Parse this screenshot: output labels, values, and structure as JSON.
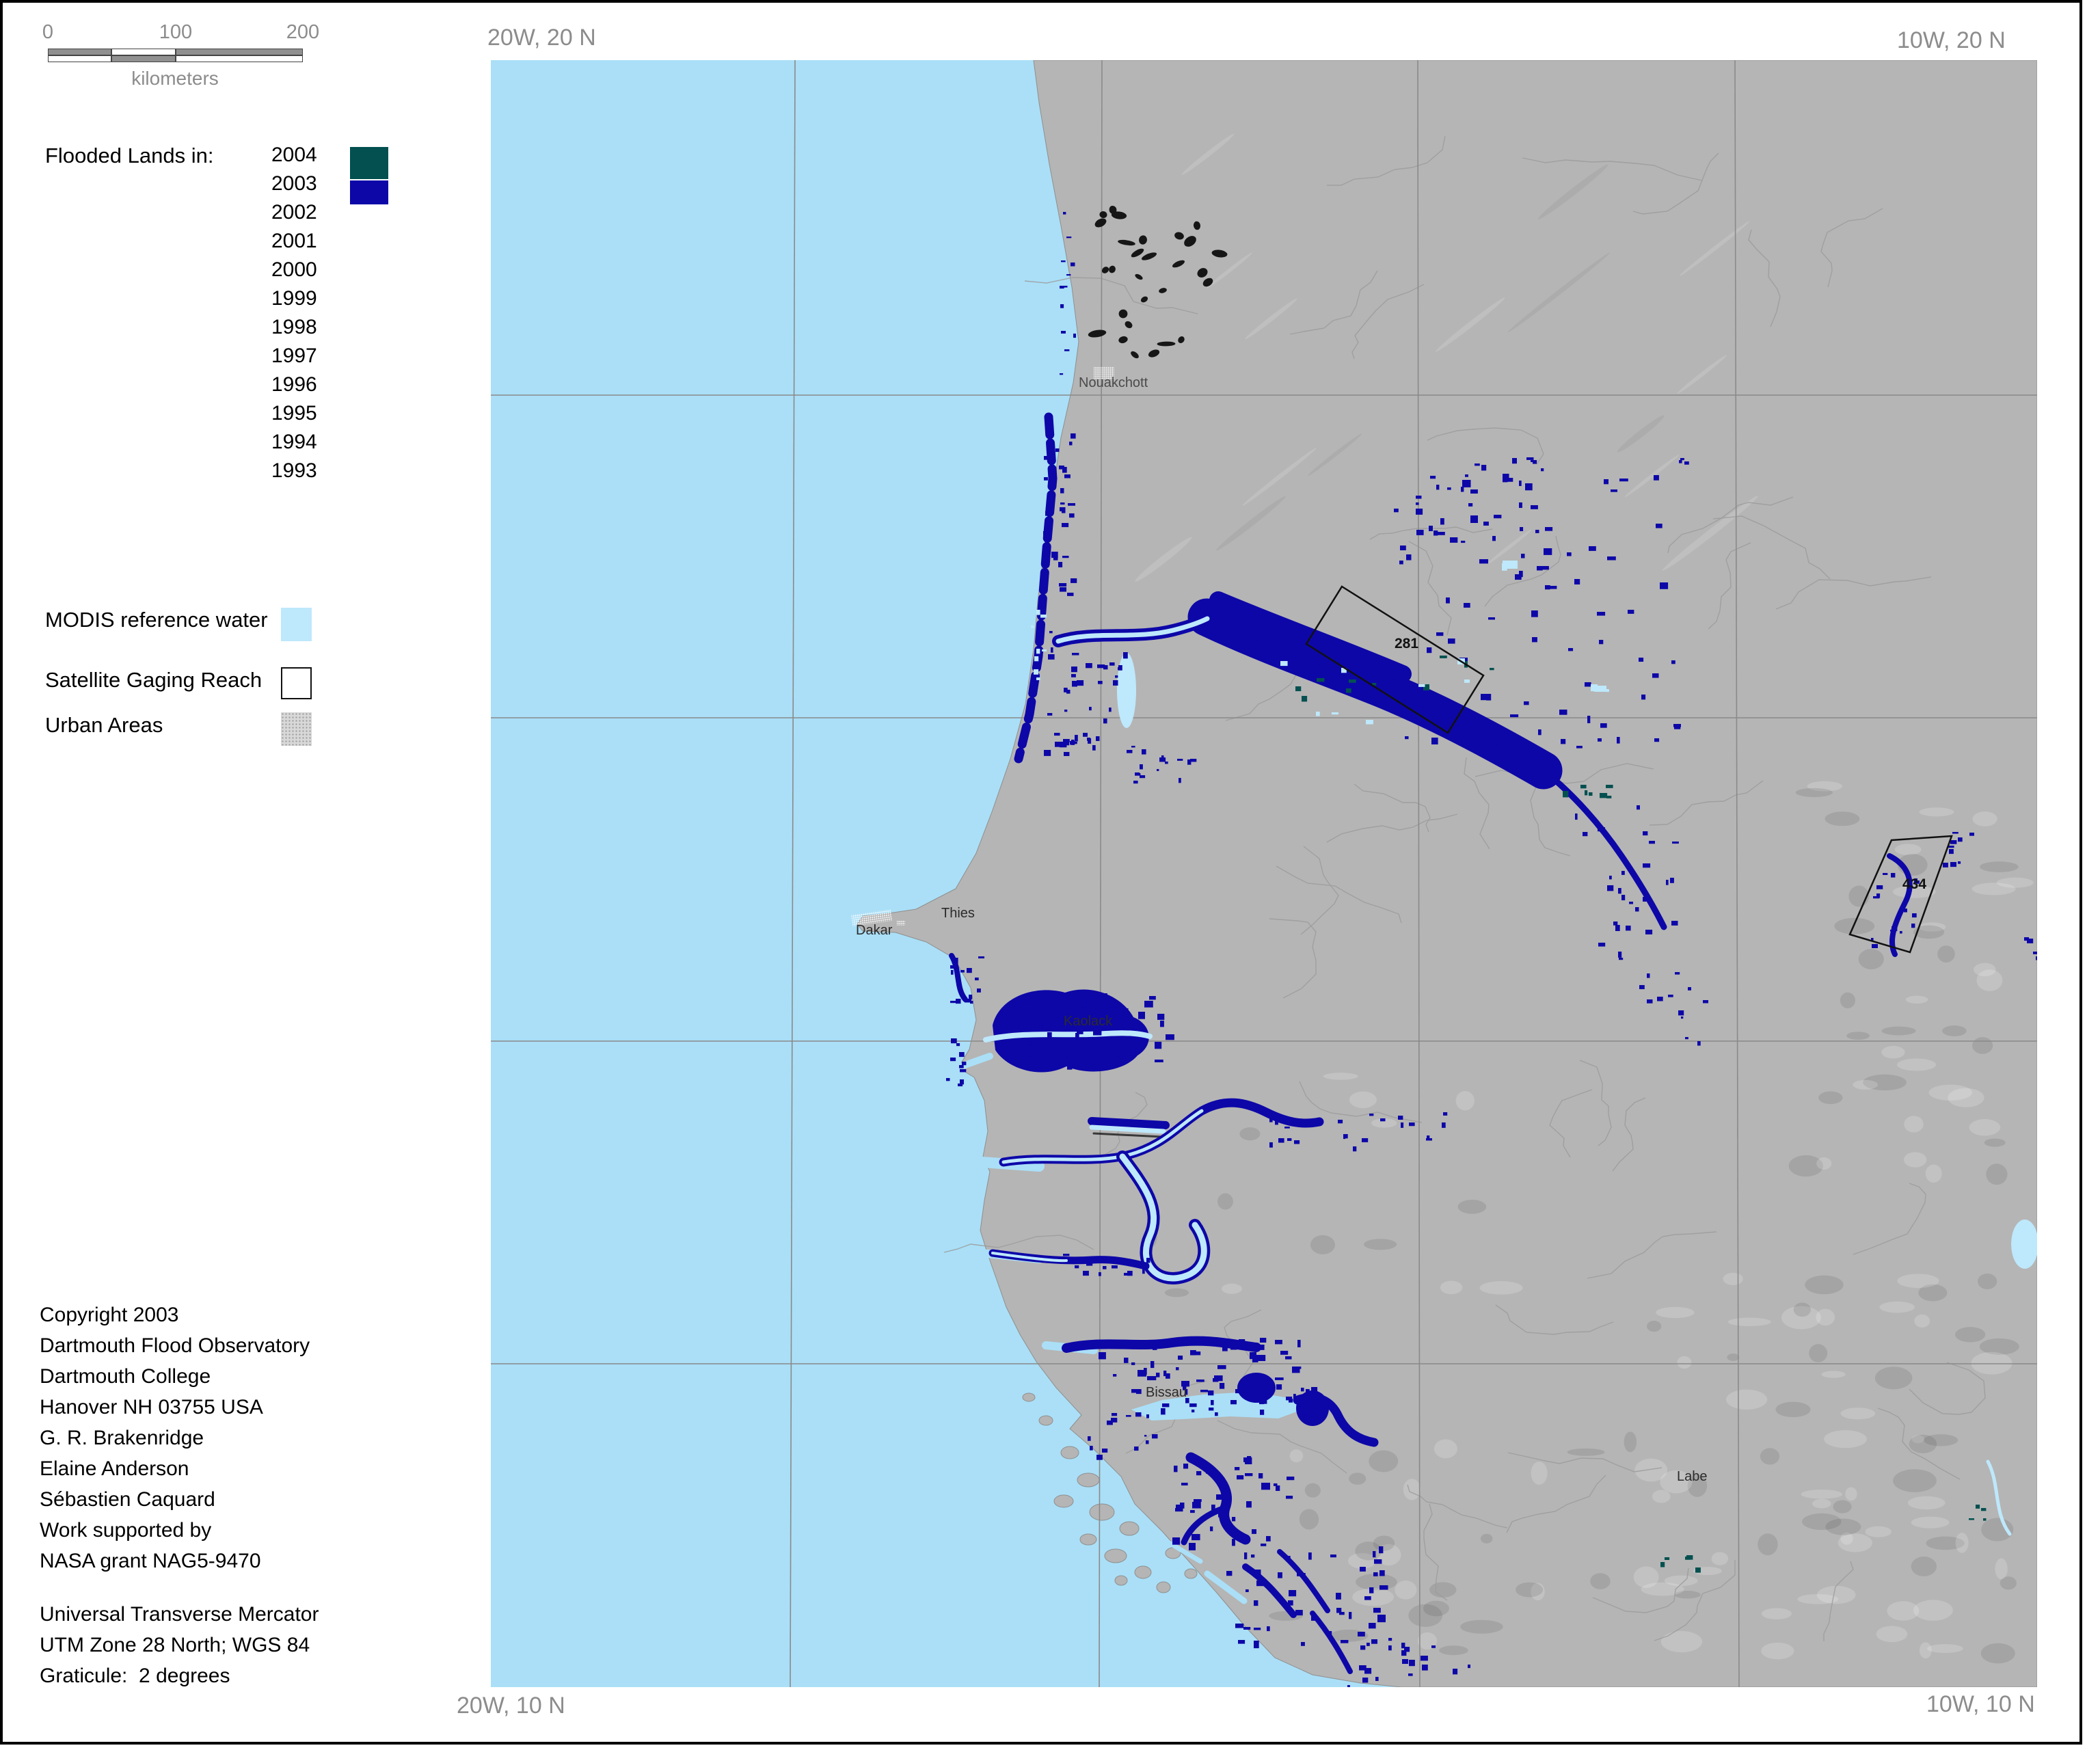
{
  "corners": {
    "top_left": "20W, 20 N",
    "top_right": "10W, 20 N",
    "bottom_left": "20W, 10 N",
    "bottom_right": "10W, 10 N"
  },
  "scalebar": {
    "ticks": [
      "0",
      "100",
      "200"
    ],
    "unit": "kilometers"
  },
  "legend": {
    "title": "Flooded Lands in:",
    "years": [
      {
        "label": "2004"
      },
      {
        "label": "2003"
      },
      {
        "label": "2002"
      },
      {
        "label": "2001"
      },
      {
        "label": "2000"
      },
      {
        "label": "1999"
      },
      {
        "label": "1998"
      },
      {
        "label": "1997"
      },
      {
        "label": "1996"
      },
      {
        "label": "1995"
      },
      {
        "label": "1994"
      },
      {
        "label": "1993"
      }
    ],
    "modis_label": "MODIS reference water",
    "gaging_label": "Satellite Gaging Reach",
    "urban_label": "Urban Areas"
  },
  "credits": {
    "lines": [
      "Copyright 2003",
      "Dartmouth Flood Observatory",
      "Dartmouth College",
      "Hanover NH 03755 USA",
      "G. R. Brakenridge",
      "Elaine Anderson",
      "Sébastien Caquard",
      "Work supported by",
      "NASA grant NAG5-9470"
    ]
  },
  "projection": {
    "lines": [
      "Universal Transverse Mercator",
      "UTM Zone 28 North; WGS 84",
      "Graticule:  2 degrees"
    ]
  },
  "map": {
    "cities": [
      {
        "name": "Nouakchott"
      },
      {
        "name": "Thies"
      },
      {
        "name": "Dakar"
      },
      {
        "name": "Kaolack"
      },
      {
        "name": "Bissau"
      },
      {
        "name": "Labe"
      }
    ],
    "reaches": [
      {
        "id": "281"
      },
      {
        "id": "434"
      }
    ]
  },
  "colors": {
    "ocean": "#AADFF7",
    "land": "#B5B5B5",
    "flood_2003": "#0D07A8",
    "flood_2004": "#045050",
    "reference_water": "#BEE8FB",
    "graticule": "#8A8A8A",
    "drainage": "#9C9C9C",
    "gray_text": "#8C8C8C",
    "urban_legend_gray": "#D8D8D8",
    "frame": "#000000"
  }
}
